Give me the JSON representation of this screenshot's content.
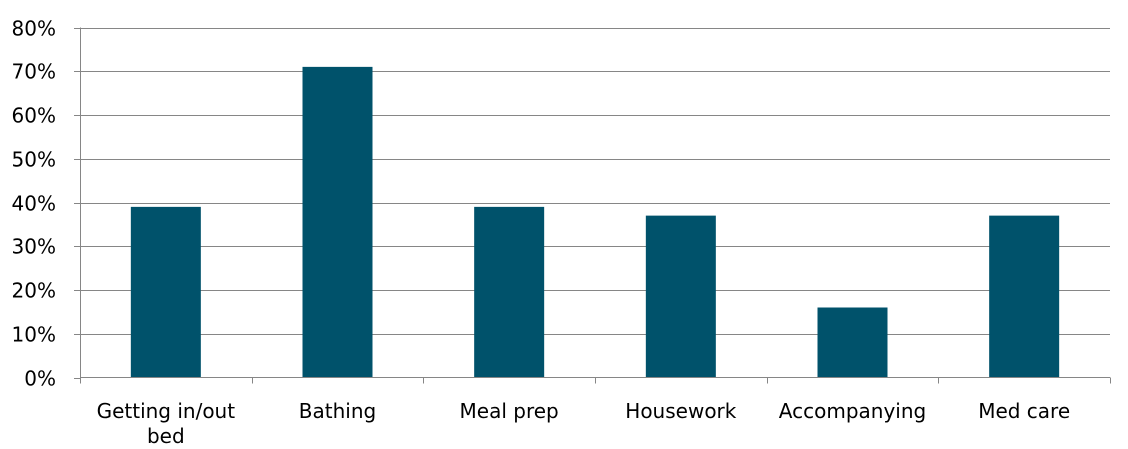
{
  "chart_data": {
    "type": "bar",
    "categories": [
      "Getting in/out bed",
      "Bathing",
      "Meal prep",
      "Housework",
      "Accompanying",
      "Med care"
    ],
    "values": [
      39,
      71,
      39,
      37,
      16,
      37
    ],
    "title": "",
    "xlabel": "",
    "ylabel": "",
    "ylim": [
      0,
      80
    ],
    "ytick_step": 10,
    "ytick_suffix": "%",
    "grid": true,
    "legend": "none",
    "colors": {
      "bar": "#00526b",
      "grid": "#868686",
      "axis": "#868686",
      "text": "#000000"
    }
  }
}
